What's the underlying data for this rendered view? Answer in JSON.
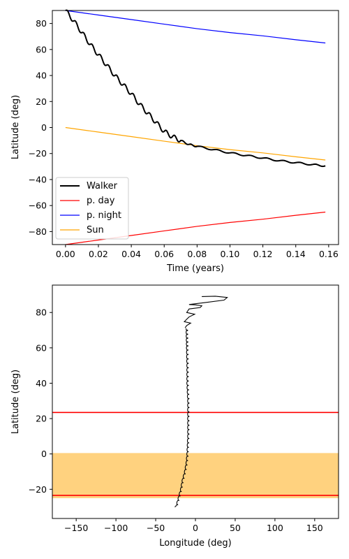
{
  "chart_data": [
    {
      "type": "line",
      "xlabel": "Time (years)",
      "ylabel": "Latitude (deg)",
      "xlim": [
        -0.008,
        0.166
      ],
      "ylim": [
        -90,
        90
      ],
      "xticks": [
        0.0,
        0.02,
        0.04,
        0.06,
        0.08,
        0.1,
        0.12,
        0.14,
        0.16
      ],
      "xtick_labels": [
        "0.00",
        "0.02",
        "0.04",
        "0.06",
        "0.08",
        "0.10",
        "0.12",
        "0.14",
        "0.16"
      ],
      "yticks": [
        -80,
        -60,
        -40,
        -20,
        0,
        20,
        40,
        60,
        80
      ],
      "ytick_labels": [
        "−80",
        "−60",
        "−40",
        "−20",
        "0",
        "20",
        "40",
        "60",
        "80"
      ],
      "legend_position": "lower-left",
      "series": [
        {
          "name": "Walker",
          "color": "#000000",
          "x": [
            0.0,
            0.005,
            0.01,
            0.015,
            0.02,
            0.025,
            0.03,
            0.035,
            0.04,
            0.045,
            0.05,
            0.055,
            0.06,
            0.065,
            0.07,
            0.075,
            0.08,
            0.09,
            0.1,
            0.11,
            0.12,
            0.13,
            0.14,
            0.15,
            0.158
          ],
          "y": [
            90,
            82,
            73,
            64,
            56,
            48,
            40,
            33,
            26,
            18,
            11,
            4,
            -3,
            -7,
            -10,
            -13,
            -14.5,
            -17,
            -19.5,
            -21.5,
            -23.5,
            -25.5,
            -27,
            -28.5,
            -29.5
          ]
        },
        {
          "name": "p. day",
          "color": "#ff0000",
          "x": [
            0.0,
            0.02,
            0.04,
            0.06,
            0.08,
            0.1,
            0.12,
            0.14,
            0.158
          ],
          "y": [
            -90,
            -86.5,
            -83,
            -79.5,
            -76,
            -73,
            -70.5,
            -67.5,
            -65
          ]
        },
        {
          "name": "p. night",
          "color": "#0000ff",
          "x": [
            0.0,
            0.02,
            0.04,
            0.06,
            0.08,
            0.1,
            0.12,
            0.14,
            0.158
          ],
          "y": [
            90,
            86.5,
            83,
            79.5,
            76,
            73,
            70.5,
            67.5,
            65
          ]
        },
        {
          "name": "Sun",
          "color": "#ffa500",
          "x": [
            0.0,
            0.02,
            0.04,
            0.06,
            0.08,
            0.1,
            0.12,
            0.14,
            0.158
          ],
          "y": [
            0,
            -3.5,
            -7,
            -10.5,
            -14,
            -17,
            -19.5,
            -22.5,
            -25
          ]
        }
      ]
    },
    {
      "type": "line",
      "xlabel": "Longitude (deg)",
      "ylabel": "Latitude (deg)",
      "xlim": [
        -180,
        180
      ],
      "ylim": [
        -36.5,
        95.5
      ],
      "xticks": [
        -150,
        -100,
        -50,
        0,
        50,
        100,
        150
      ],
      "xtick_labels": [
        "−150",
        "−100",
        "−50",
        "0",
        "50",
        "100",
        "150"
      ],
      "yticks": [
        -20,
        0,
        20,
        40,
        60,
        80
      ],
      "ytick_labels": [
        "−20",
        "0",
        "20",
        "40",
        "60",
        "80"
      ],
      "shaded_band": {
        "y_from": -25,
        "y_to": 0.5,
        "color": "#ffd27f"
      },
      "reference_lines": [
        {
          "y": 23.44,
          "color": "#ff0000"
        },
        {
          "y": -23.44,
          "color": "#ff0000"
        }
      ],
      "walker_path": {
        "color": "#000000",
        "points": [
          [
            8,
            89
          ],
          [
            25,
            89.2
          ],
          [
            40,
            88.5
          ],
          [
            36,
            87
          ],
          [
            10,
            85.5
          ],
          [
            -8,
            84.5
          ],
          [
            0,
            84.3
          ],
          [
            8,
            83.8
          ],
          [
            6,
            82.8
          ],
          [
            -8,
            82
          ],
          [
            -11,
            80
          ],
          [
            -1,
            79
          ],
          [
            -8,
            77.5
          ],
          [
            -11,
            76.2
          ],
          [
            -14,
            74.8
          ],
          [
            -6,
            74
          ],
          [
            -11,
            72.6
          ],
          [
            -13,
            71.3
          ]
        ],
        "spine": [
          [
            -13,
            71
          ],
          [
            -12.5,
            60
          ],
          [
            -12,
            50
          ],
          [
            -12,
            40
          ],
          [
            -11,
            30
          ],
          [
            -11,
            20
          ],
          [
            -11,
            10
          ],
          [
            -12,
            0
          ],
          [
            -13,
            -5
          ],
          [
            -15,
            -10
          ],
          [
            -18,
            -15
          ],
          [
            -20,
            -20
          ],
          [
            -23,
            -25
          ],
          [
            -26,
            -30
          ]
        ]
      }
    }
  ]
}
